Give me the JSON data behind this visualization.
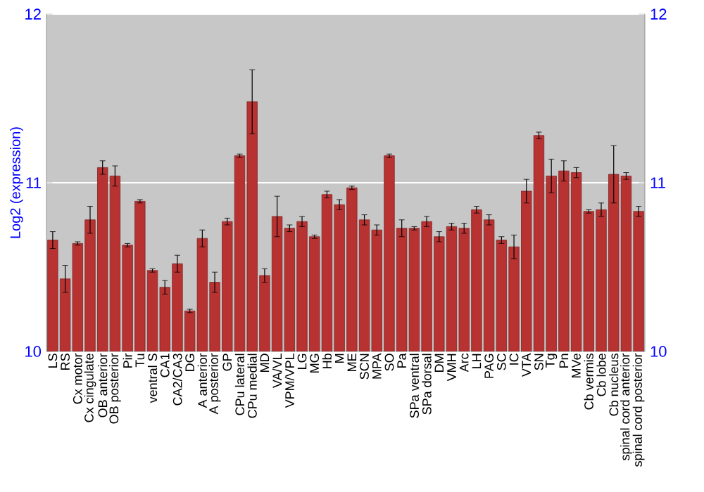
{
  "chart_data": {
    "type": "bar",
    "ylabel": "Log2 (expression)",
    "categories": [
      "LS",
      "RS",
      "Cx motor",
      "Cx cingulate",
      "OB anterior",
      "OB posterior",
      "Pir",
      "Tu",
      "ventral S",
      "CA1",
      "CA2/CA3",
      "DG",
      "A anterior",
      "A posterior",
      "GP",
      "CPu lateral",
      "CPu medial",
      "MD",
      "VA/VL",
      "VPM/VPL",
      "LG",
      "MG",
      "Hb",
      "M",
      "ME",
      "SCN",
      "MPA",
      "SO",
      "Pa",
      "SPa ventral",
      "SPa dorsal",
      "DM",
      "VMH",
      "Arc",
      "LH",
      "PAG",
      "SC",
      "IC",
      "VTA",
      "SN",
      "Tg",
      "Pn",
      "MVe",
      "Cb vermis",
      "Cb lobe",
      "Cb nucleus",
      "spinal cord anterior",
      "spinal cord posterior"
    ],
    "values": [
      10.66,
      10.43,
      10.64,
      10.78,
      11.09,
      11.04,
      10.63,
      10.89,
      10.48,
      10.38,
      10.52,
      10.24,
      10.67,
      10.41,
      10.77,
      11.16,
      11.48,
      10.45,
      10.8,
      10.73,
      10.77,
      10.68,
      10.93,
      10.87,
      10.97,
      10.78,
      10.72,
      11.16,
      10.73,
      10.73,
      10.77,
      10.68,
      10.74,
      10.73,
      10.84,
      10.78,
      10.66,
      10.62,
      10.95,
      11.28,
      11.04,
      11.07,
      11.06,
      10.83,
      10.84,
      11.05,
      11.04,
      10.83
    ],
    "errors": [
      0.05,
      0.08,
      0.01,
      0.08,
      0.04,
      0.06,
      0.01,
      0.01,
      0.01,
      0.04,
      0.05,
      0.01,
      0.05,
      0.06,
      0.02,
      0.01,
      0.19,
      0.04,
      0.12,
      0.02,
      0.03,
      0.01,
      0.02,
      0.03,
      0.01,
      0.03,
      0.03,
      0.01,
      0.05,
      0.01,
      0.03,
      0.03,
      0.02,
      0.03,
      0.02,
      0.03,
      0.02,
      0.07,
      0.07,
      0.02,
      0.1,
      0.06,
      0.03,
      0.01,
      0.04,
      0.17,
      0.02,
      0.03
    ],
    "color": "#b83232",
    "ylim": [
      10,
      12
    ],
    "yticks": [
      10,
      11,
      12
    ],
    "y2lim": [
      10,
      12
    ],
    "y2ticks": [
      10,
      11,
      12
    ],
    "grid": "y"
  }
}
